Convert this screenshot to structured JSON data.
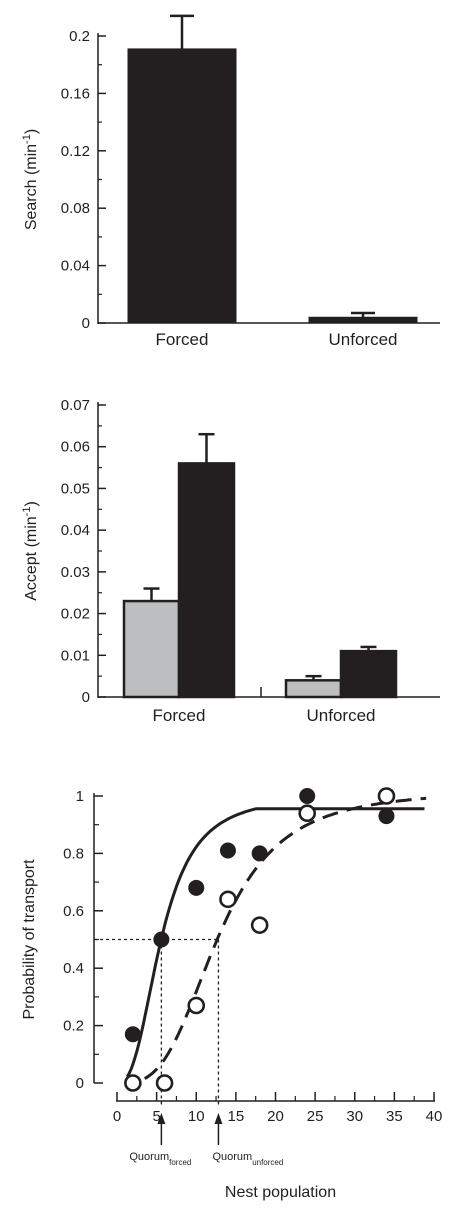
{
  "chart_data": [
    {
      "type": "bar",
      "ylabel": "Search (min",
      "ylabel_sup": "-1",
      "ylabel_close": ")",
      "categories": [
        "Forced",
        "Unforced"
      ],
      "values": [
        0.191,
        0.004
      ],
      "errors": [
        0.023,
        0.003
      ],
      "ylim": [
        0,
        0.2
      ],
      "yticks": [
        "0",
        "0.04",
        "0.08",
        "0.12",
        "0.16",
        "0.2"
      ],
      "grid": false,
      "bar_color": "#231f20"
    },
    {
      "type": "bar",
      "ylabel": "Accept (min",
      "ylabel_sup": "-1",
      "ylabel_close": ")",
      "categories": [
        "Forced",
        "Unforced"
      ],
      "series": [
        {
          "values": [
            0.023,
            0.004
          ],
          "errors": [
            0.003,
            0.001
          ],
          "color": "#bcbec0"
        },
        {
          "values": [
            0.056,
            0.011
          ],
          "errors": [
            0.007,
            0.001
          ],
          "color": "#231f20"
        }
      ],
      "ylim": [
        0,
        0.07
      ],
      "yticks": [
        "0",
        "0.01",
        "0.02",
        "0.03",
        "0.04",
        "0.05",
        "0.06",
        "0.07"
      ],
      "grid": false
    },
    {
      "type": "scatter",
      "xlabel": "Nest population",
      "ylabel": "Probability of transport",
      "xlim": [
        0,
        40
      ],
      "ylim": [
        0,
        1
      ],
      "xticks": [
        "0",
        "5",
        "10",
        "15",
        "20",
        "25",
        "30",
        "35",
        "40"
      ],
      "yticks": [
        "0",
        "0.2",
        "0.4",
        "0.6",
        "0.8",
        "1"
      ],
      "grid": false,
      "series": [
        {
          "marker": "filled-circle",
          "line": "solid",
          "x": [
            2,
            5.6,
            10,
            14,
            18,
            24,
            34
          ],
          "y": [
            0.17,
            0.5,
            0.68,
            0.81,
            0.8,
            1.0,
            0.93
          ]
        },
        {
          "marker": "open-circle",
          "line": "dashed",
          "x": [
            2,
            6,
            10,
            14,
            18,
            24,
            34
          ],
          "y": [
            0.0,
            0.0,
            0.27,
            0.64,
            0.55,
            0.94,
            1.0
          ]
        }
      ],
      "reference_line": {
        "y": 0.5,
        "x_marks": [
          5.6,
          12.8
        ]
      },
      "annotations": [
        {
          "text": "Quorum",
          "sub": "forced",
          "x": 5.6
        },
        {
          "text": "Quorum",
          "sub": "unforced",
          "x": 12.8
        }
      ]
    }
  ]
}
